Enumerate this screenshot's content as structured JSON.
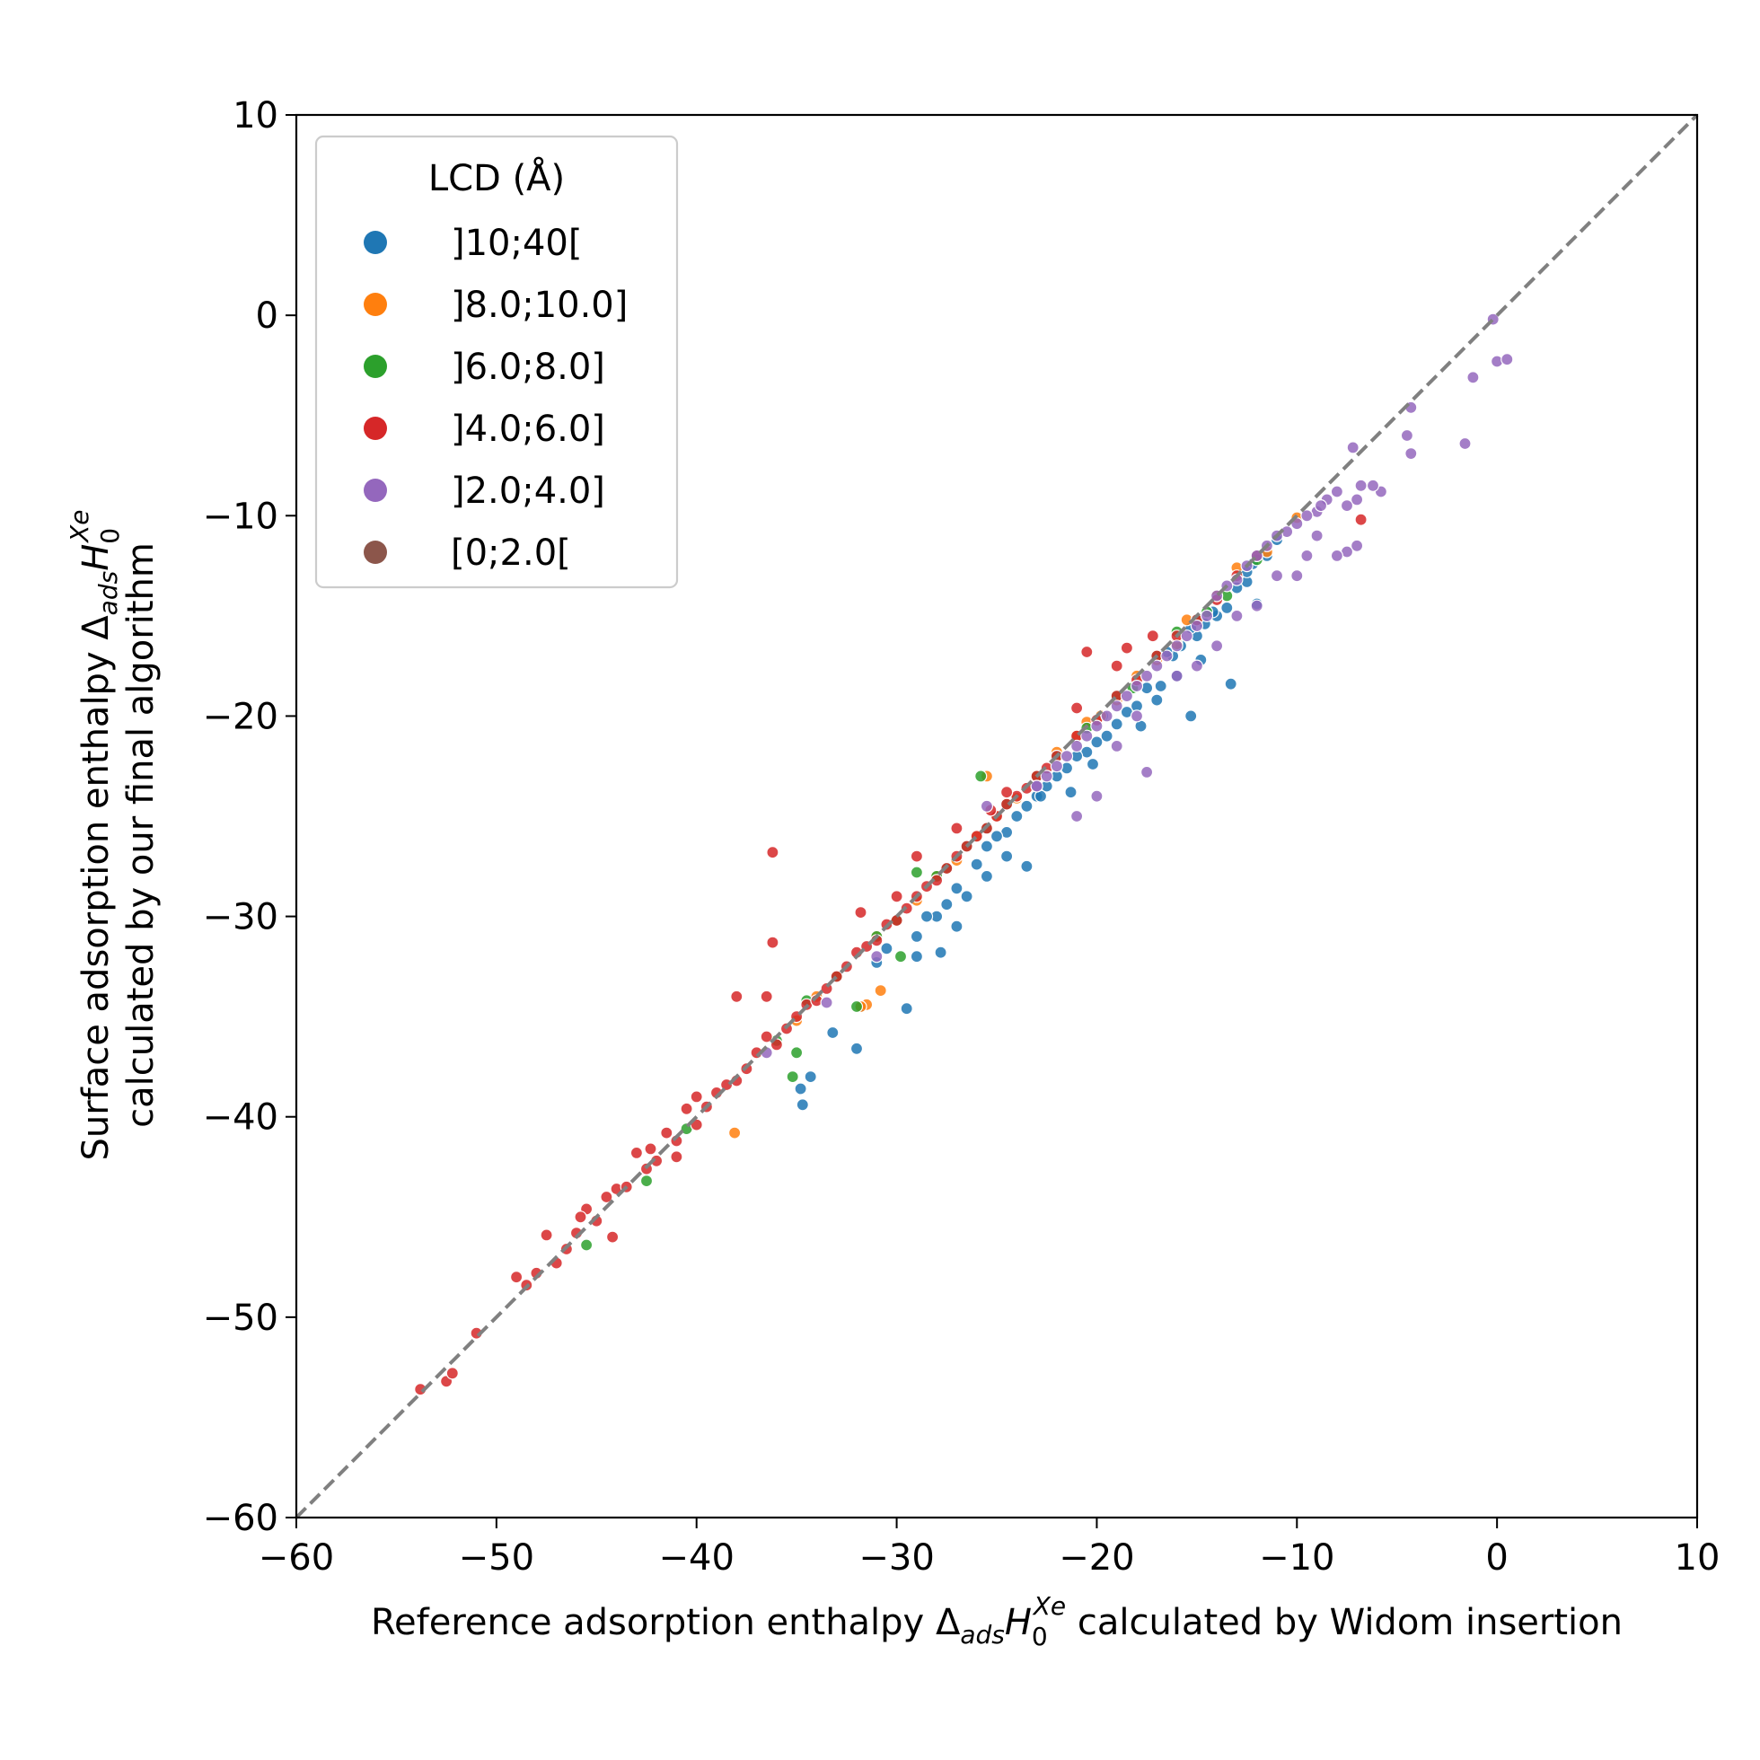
{
  "chart_data": {
    "type": "scatter",
    "xlabel": {
      "pre": "Reference adsorption enthalpy Δ",
      "sub1": "ads",
      "mid": "H",
      "sub2": "0",
      "sup": "Xe",
      "post": " calculated by Widom insertion"
    },
    "ylabel": {
      "line1_pre": "Surface adsorption enthalpy Δ",
      "sub1": "ads",
      "mid": "H",
      "sub2": "0",
      "sup": "Xe",
      "line2": "calculated by our final algorithm"
    },
    "xlim": [
      -60,
      10
    ],
    "ylim": [
      -60,
      10
    ],
    "xticks": [
      -60,
      -50,
      -40,
      -30,
      -20,
      -10,
      0,
      10
    ],
    "yticks": [
      -60,
      -50,
      -40,
      -30,
      -20,
      -10,
      0,
      10
    ],
    "xtick_labels": [
      "−60",
      "−50",
      "−40",
      "−30",
      "−20",
      "−10",
      "0",
      "10"
    ],
    "ytick_labels": [
      "−60",
      "−50",
      "−40",
      "−30",
      "−20",
      "−10",
      "0",
      "10"
    ],
    "grid": false,
    "reference_line": {
      "style": "dashed",
      "color": "#808080",
      "from": [
        -60,
        -60
      ],
      "to": [
        10,
        10
      ]
    },
    "legend": {
      "title": "LCD (Å)",
      "placement": "top-left"
    },
    "series": [
      {
        "name": "]10;40[",
        "color": "#1f77b4",
        "points": [
          [
            -11.0,
            -11.2
          ],
          [
            -11.5,
            -12.0
          ],
          [
            -12.2,
            -12.4
          ],
          [
            -12.5,
            -13.3
          ],
          [
            -12.0,
            -14.4
          ],
          [
            -13.0,
            -13.6
          ],
          [
            -13.5,
            -14.6
          ],
          [
            -14.0,
            -15.0
          ],
          [
            -14.2,
            -14.8
          ],
          [
            -15.0,
            -16.0
          ],
          [
            -15.3,
            -15.6
          ],
          [
            -15.8,
            -16.5
          ],
          [
            -16.2,
            -17.0
          ],
          [
            -16.5,
            -16.8
          ],
          [
            -16.0,
            -18.0
          ],
          [
            -16.8,
            -18.5
          ],
          [
            -13.3,
            -18.4
          ],
          [
            -15.3,
            -20.0
          ],
          [
            -17.0,
            -19.2
          ],
          [
            -17.5,
            -18.6
          ],
          [
            -18.0,
            -19.5
          ],
          [
            -18.5,
            -19.8
          ],
          [
            -19.0,
            -20.4
          ],
          [
            -19.5,
            -21.0
          ],
          [
            -20.0,
            -21.3
          ],
          [
            -20.5,
            -21.8
          ],
          [
            -21.0,
            -22.0
          ],
          [
            -21.5,
            -22.6
          ],
          [
            -22.0,
            -23.0
          ],
          [
            -22.5,
            -23.5
          ],
          [
            -23.0,
            -24.0
          ],
          [
            -23.5,
            -24.5
          ],
          [
            -24.0,
            -25.0
          ],
          [
            -24.5,
            -25.8
          ],
          [
            -25.0,
            -26.0
          ],
          [
            -25.5,
            -26.5
          ],
          [
            -26.0,
            -27.4
          ],
          [
            -24.5,
            -27.0
          ],
          [
            -25.5,
            -28.0
          ],
          [
            -23.5,
            -27.5
          ],
          [
            -26.5,
            -29.0
          ],
          [
            -27.0,
            -28.6
          ],
          [
            -27.5,
            -29.4
          ],
          [
            -28.0,
            -30.0
          ],
          [
            -28.5,
            -30.0
          ],
          [
            -29.0,
            -31.0
          ],
          [
            -29.0,
            -32.0
          ],
          [
            -27.0,
            -30.5
          ],
          [
            -27.8,
            -31.8
          ],
          [
            -30.5,
            -31.6
          ],
          [
            -31.0,
            -32.3
          ],
          [
            -29.5,
            -34.6
          ],
          [
            -31.8,
            -34.5
          ],
          [
            -33.2,
            -35.8
          ],
          [
            -32.0,
            -36.6
          ],
          [
            -34.8,
            -38.6
          ],
          [
            -34.7,
            -39.4
          ],
          [
            -34.3,
            -38.0
          ],
          [
            -14.8,
            -17.2
          ],
          [
            -17.8,
            -20.5
          ],
          [
            -22.8,
            -24.0
          ],
          [
            -21.3,
            -23.8
          ],
          [
            -19.7,
            -20.0
          ],
          [
            -12.5,
            -12.8
          ],
          [
            -14.6,
            -15.4
          ],
          [
            -20.2,
            -22.4
          ]
        ]
      },
      {
        "name": "]8.0;10.0]",
        "color": "#ff7f0e",
        "points": [
          [
            -10.0,
            -10.1
          ],
          [
            -11.5,
            -11.8
          ],
          [
            -13.0,
            -12.6
          ],
          [
            -14.0,
            -14.0
          ],
          [
            -15.5,
            -15.2
          ],
          [
            -17.0,
            -17.2
          ],
          [
            -18.0,
            -18.0
          ],
          [
            -19.0,
            -19.2
          ],
          [
            -20.5,
            -20.3
          ],
          [
            -21.0,
            -21.0
          ],
          [
            -22.0,
            -21.8
          ],
          [
            -23.0,
            -23.0
          ],
          [
            -24.0,
            -24.1
          ],
          [
            -25.5,
            -23.0
          ],
          [
            -25.0,
            -25.0
          ],
          [
            -26.0,
            -26.0
          ],
          [
            -27.0,
            -27.2
          ],
          [
            -28.0,
            -28.0
          ],
          [
            -29.0,
            -29.2
          ],
          [
            -30.0,
            -30.2
          ],
          [
            -31.0,
            -31.0
          ],
          [
            -31.5,
            -34.4
          ],
          [
            -30.8,
            -33.7
          ],
          [
            -31.8,
            -34.5
          ],
          [
            -33.0,
            -33.0
          ],
          [
            -34.0,
            -34.0
          ],
          [
            -35.0,
            -35.2
          ],
          [
            -38.1,
            -40.8
          ],
          [
            -16.0,
            -16.4
          ],
          [
            -19.8,
            -20.0
          ]
        ]
      },
      {
        "name": "]6.0;8.0]",
        "color": "#2ca02c",
        "points": [
          [
            -12.0,
            -12.2
          ],
          [
            -13.5,
            -14.0
          ],
          [
            -14.5,
            -14.8
          ],
          [
            -16.0,
            -15.8
          ],
          [
            -17.0,
            -17.0
          ],
          [
            -18.2,
            -18.6
          ],
          [
            -19.0,
            -19.0
          ],
          [
            -20.5,
            -20.6
          ],
          [
            -22.0,
            -22.0
          ],
          [
            -23.0,
            -23.0
          ],
          [
            -24.5,
            -24.4
          ],
          [
            -25.8,
            -23.0
          ],
          [
            -25.5,
            -25.6
          ],
          [
            -26.5,
            -26.5
          ],
          [
            -27.5,
            -27.6
          ],
          [
            -28.0,
            -28.0
          ],
          [
            -29.0,
            -27.8
          ],
          [
            -30.0,
            -30.2
          ],
          [
            -31.0,
            -31.0
          ],
          [
            -32.0,
            -34.5
          ],
          [
            -33.0,
            -33.0
          ],
          [
            -34.5,
            -34.2
          ],
          [
            -35.0,
            -36.8
          ],
          [
            -35.2,
            -38.0
          ],
          [
            -36.0,
            -36.2
          ],
          [
            -40.5,
            -40.6
          ],
          [
            -42.5,
            -43.2
          ],
          [
            -45.5,
            -46.4
          ],
          [
            -29.8,
            -32.0
          ],
          [
            -15.0,
            -15.2
          ]
        ]
      },
      {
        "name": "]4.0;6.0]",
        "color": "#d62728",
        "points": [
          [
            -53.8,
            -53.6
          ],
          [
            -52.5,
            -53.2
          ],
          [
            -52.2,
            -52.8
          ],
          [
            -51.0,
            -50.8
          ],
          [
            -49.0,
            -48.0
          ],
          [
            -48.5,
            -48.4
          ],
          [
            -48.0,
            -47.8
          ],
          [
            -47.5,
            -45.9
          ],
          [
            -47.0,
            -47.3
          ],
          [
            -46.5,
            -46.6
          ],
          [
            -46.0,
            -45.8
          ],
          [
            -45.5,
            -44.6
          ],
          [
            -45.0,
            -45.2
          ],
          [
            -44.5,
            -44.0
          ],
          [
            -44.2,
            -46.0
          ],
          [
            -44.0,
            -43.6
          ],
          [
            -43.5,
            -43.5
          ],
          [
            -43.0,
            -41.8
          ],
          [
            -42.5,
            -42.6
          ],
          [
            -42.0,
            -42.2
          ],
          [
            -41.5,
            -40.8
          ],
          [
            -41.0,
            -41.2
          ],
          [
            -40.5,
            -39.6
          ],
          [
            -40.0,
            -40.4
          ],
          [
            -40.0,
            -39.0
          ],
          [
            -39.5,
            -39.5
          ],
          [
            -39.0,
            -38.8
          ],
          [
            -38.5,
            -38.4
          ],
          [
            -38.0,
            -38.2
          ],
          [
            -37.5,
            -37.6
          ],
          [
            -37.0,
            -36.8
          ],
          [
            -36.5,
            -36.0
          ],
          [
            -36.0,
            -36.4
          ],
          [
            -35.5,
            -35.6
          ],
          [
            -35.0,
            -35.0
          ],
          [
            -34.5,
            -34.4
          ],
          [
            -34.0,
            -34.2
          ],
          [
            -33.5,
            -33.6
          ],
          [
            -33.0,
            -33.0
          ],
          [
            -32.5,
            -32.5
          ],
          [
            -32.0,
            -31.8
          ],
          [
            -31.5,
            -31.5
          ],
          [
            -31.0,
            -31.2
          ],
          [
            -30.5,
            -30.4
          ],
          [
            -30.0,
            -30.2
          ],
          [
            -29.5,
            -29.6
          ],
          [
            -29.0,
            -29.0
          ],
          [
            -28.5,
            -28.5
          ],
          [
            -28.0,
            -28.2
          ],
          [
            -27.5,
            -27.6
          ],
          [
            -27.0,
            -27.0
          ],
          [
            -26.5,
            -26.5
          ],
          [
            -26.0,
            -26.0
          ],
          [
            -25.5,
            -25.6
          ],
          [
            -25.0,
            -25.0
          ],
          [
            -24.5,
            -24.4
          ],
          [
            -24.0,
            -24.0
          ],
          [
            -23.5,
            -23.6
          ],
          [
            -23.0,
            -23.0
          ],
          [
            -22.5,
            -22.6
          ],
          [
            -22.0,
            -22.0
          ],
          [
            -21.0,
            -21.0
          ],
          [
            -20.0,
            -20.2
          ],
          [
            -19.0,
            -19.0
          ],
          [
            -18.0,
            -18.2
          ],
          [
            -17.0,
            -17.0
          ],
          [
            -16.0,
            -16.0
          ],
          [
            -15.0,
            -15.2
          ],
          [
            -14.0,
            -14.2
          ],
          [
            -13.0,
            -13.0
          ],
          [
            -12.0,
            -12.0
          ],
          [
            -36.2,
            -26.8
          ],
          [
            -36.2,
            -31.3
          ],
          [
            -38.0,
            -34.0
          ],
          [
            -36.5,
            -34.0
          ],
          [
            -31.8,
            -29.8
          ],
          [
            -30.0,
            -29.0
          ],
          [
            -29.0,
            -27.0
          ],
          [
            -27.0,
            -25.6
          ],
          [
            -25.3,
            -24.7
          ],
          [
            -24.5,
            -23.8
          ],
          [
            -21.0,
            -19.6
          ],
          [
            -20.5,
            -16.8
          ],
          [
            -18.5,
            -16.6
          ],
          [
            -17.2,
            -16.0
          ],
          [
            -19.0,
            -17.5
          ],
          [
            -6.8,
            -10.2
          ],
          [
            -42.3,
            -41.6
          ],
          [
            -41.0,
            -42.0
          ],
          [
            -45.8,
            -45.0
          ]
        ]
      },
      {
        "name": "]2.0;4.0]",
        "color": "#9467bd",
        "points": [
          [
            -0.2,
            -0.2
          ],
          [
            0.0,
            -2.3
          ],
          [
            0.5,
            -2.2
          ],
          [
            -1.2,
            -3.1
          ],
          [
            -1.6,
            -6.4
          ],
          [
            -4.3,
            -4.6
          ],
          [
            -4.5,
            -6.0
          ],
          [
            -4.3,
            -6.9
          ],
          [
            -7.2,
            -6.6
          ],
          [
            -5.8,
            -8.8
          ],
          [
            -6.2,
            -8.5
          ],
          [
            -6.8,
            -8.5
          ],
          [
            -7.0,
            -9.2
          ],
          [
            -7.5,
            -9.5
          ],
          [
            -8.0,
            -8.8
          ],
          [
            -8.5,
            -9.2
          ],
          [
            -9.0,
            -9.8
          ],
          [
            -9.5,
            -10.0
          ],
          [
            -10.0,
            -10.4
          ],
          [
            -10.5,
            -10.8
          ],
          [
            -11.0,
            -11.0
          ],
          [
            -11.5,
            -11.5
          ],
          [
            -12.0,
            -12.0
          ],
          [
            -12.5,
            -12.5
          ],
          [
            -13.0,
            -13.2
          ],
          [
            -13.5,
            -13.5
          ],
          [
            -14.0,
            -14.0
          ],
          [
            -14.5,
            -15.0
          ],
          [
            -15.0,
            -15.5
          ],
          [
            -15.5,
            -16.0
          ],
          [
            -16.0,
            -16.5
          ],
          [
            -16.5,
            -17.0
          ],
          [
            -17.0,
            -17.5
          ],
          [
            -17.5,
            -18.0
          ],
          [
            -18.0,
            -18.5
          ],
          [
            -18.5,
            -19.0
          ],
          [
            -19.0,
            -19.5
          ],
          [
            -19.5,
            -20.0
          ],
          [
            -20.0,
            -20.5
          ],
          [
            -20.5,
            -21.0
          ],
          [
            -21.0,
            -21.5
          ],
          [
            -21.5,
            -22.0
          ],
          [
            -22.0,
            -22.5
          ],
          [
            -22.5,
            -23.0
          ],
          [
            -23.0,
            -23.5
          ],
          [
            -7.0,
            -11.5
          ],
          [
            -7.5,
            -11.8
          ],
          [
            -8.0,
            -12.0
          ],
          [
            -9.0,
            -11.0
          ],
          [
            -9.5,
            -12.0
          ],
          [
            -10.0,
            -13.0
          ],
          [
            -11.0,
            -13.0
          ],
          [
            -12.0,
            -14.5
          ],
          [
            -13.0,
            -15.0
          ],
          [
            -14.0,
            -16.5
          ],
          [
            -15.0,
            -17.5
          ],
          [
            -16.0,
            -18.0
          ],
          [
            -18.0,
            -20.0
          ],
          [
            -19.0,
            -21.5
          ],
          [
            -17.5,
            -22.8
          ],
          [
            -20.0,
            -24.0
          ],
          [
            -21.0,
            -25.0
          ],
          [
            -25.5,
            -24.5
          ],
          [
            -36.5,
            -36.8
          ],
          [
            -33.5,
            -34.3
          ],
          [
            -31.0,
            -32.0
          ],
          [
            -23.0,
            -23.5
          ],
          [
            -8.8,
            -9.5
          ]
        ]
      },
      {
        "name": "[0;2.0[",
        "color": "#8c564b",
        "points": []
      }
    ]
  }
}
